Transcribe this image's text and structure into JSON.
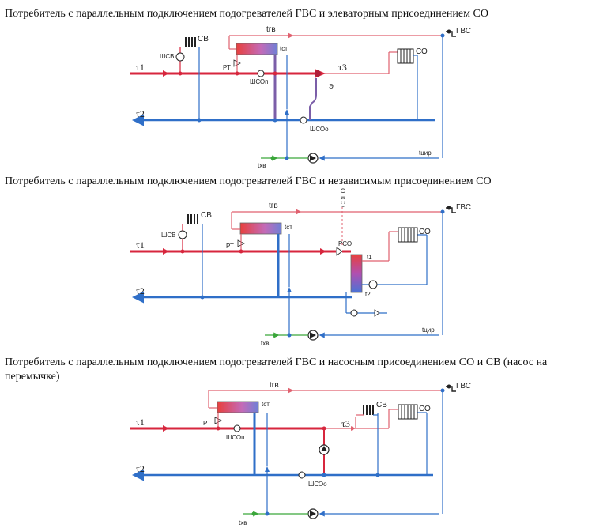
{
  "diagram1": {
    "title": "Потребитель с параллельным подключением подогревателей ГВС и элеваторным присоединением СО",
    "labels": {
      "t1": "τ1",
      "t2": "τ2",
      "t3": "τ3",
      "tgv": "tгв",
      "gvs": "ГВС",
      "sv": "СВ",
      "so": "СО",
      "shsv": "ШСВ",
      "rt": "РТ",
      "tst": "tст",
      "shsop": "ШСОп",
      "shsoo": "ШСОо",
      "e": "Э",
      "txv": "tхв",
      "tcir": "tцир"
    }
  },
  "diagram2": {
    "title": "Потребитель с параллельным подключением подогревателей ГВС и независимым присоединением СО",
    "labels": {
      "t1": "τ1",
      "t2": "τ2",
      "tgv": "tгв",
      "gvs": "ГВС",
      "sv": "СВ",
      "so": "СО",
      "shsv": "ШСВ",
      "rt": "РТ",
      "tst": "tст",
      "rso": "РСО",
      "tt1": "t1",
      "tt2": "t2",
      "txv": "tхв",
      "tcir": "tцир",
      "sopo": "СОПО"
    }
  },
  "diagram3": {
    "title": "Потребитель с параллельным подключением подогревателей ГВС и насосным присоединением СО и СВ (насос на перемычке)",
    "labels": {
      "t1": "τ1",
      "t2": "τ2",
      "t3": "τ3",
      "tgv": "tгв",
      "gvs": "ГВС",
      "sv": "СВ",
      "so": "СО",
      "rt": "РТ",
      "tst": "tст",
      "shsop": "ШСОп",
      "shsoo": "ШСОо",
      "txv": "tхв"
    }
  },
  "colors": {
    "supply": "#d7263d",
    "return": "#2f6fc8",
    "dhw": "#e0616f",
    "cold": "#3aa63a",
    "purple": "#7b5ea8"
  }
}
